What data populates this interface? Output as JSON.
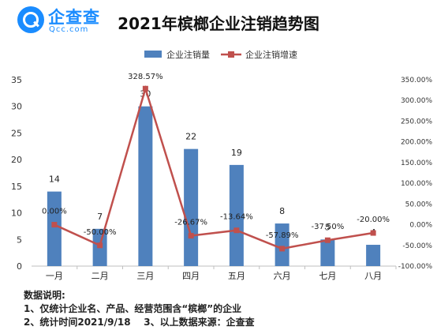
{
  "logo": {
    "name": "企查查",
    "domain": "Qcc.com"
  },
  "title": "2021年槟榔企业注销趋势图",
  "legend": {
    "bar_label": "企业注销量",
    "line_label": "企业注销增速"
  },
  "colors": {
    "bar": "#4f81bd",
    "line": "#c0504d"
  },
  "chart_data": {
    "type": "bar",
    "categories": [
      "一月",
      "二月",
      "三月",
      "四月",
      "五月",
      "六月",
      "七月",
      "八月"
    ],
    "series": [
      {
        "name": "企业注销量",
        "type": "bar",
        "axis": "left",
        "values": [
          14,
          7,
          30,
          22,
          19,
          8,
          5,
          4
        ]
      },
      {
        "name": "企业注销增速",
        "type": "line",
        "axis": "right",
        "values": [
          0.0,
          -50.0,
          328.57,
          -26.67,
          -13.64,
          -57.89,
          -37.5,
          -20.0
        ]
      }
    ],
    "bar_labels": [
      "14",
      "7",
      "30",
      "22",
      "19",
      "8",
      "5",
      "4"
    ],
    "line_labels": [
      "0.00%",
      "-50.00%",
      "328.57%",
      "-26.67%",
      "-13.64%",
      "-57.89%",
      "-37.50%",
      "-20.00%"
    ],
    "ylim_left": [
      0,
      35
    ],
    "ylim_right": [
      -100,
      350
    ],
    "left_ticks": [
      "0",
      "5",
      "10",
      "15",
      "20",
      "25",
      "30",
      "35"
    ],
    "right_ticks": [
      "-100.00%",
      "-50.00%",
      "0.00%",
      "50.00%",
      "100.00%",
      "150.00%",
      "200.00%",
      "250.00%",
      "300.00%",
      "350.00%"
    ],
    "legend_position": "top",
    "grid": false
  },
  "notes": {
    "heading": "数据说明:",
    "line1": "1、仅统计企业名、产品、经营范围含“槟榔”的企业",
    "line2": "2、统计时间2021/9/18    3、以上数据来源：企查查"
  }
}
